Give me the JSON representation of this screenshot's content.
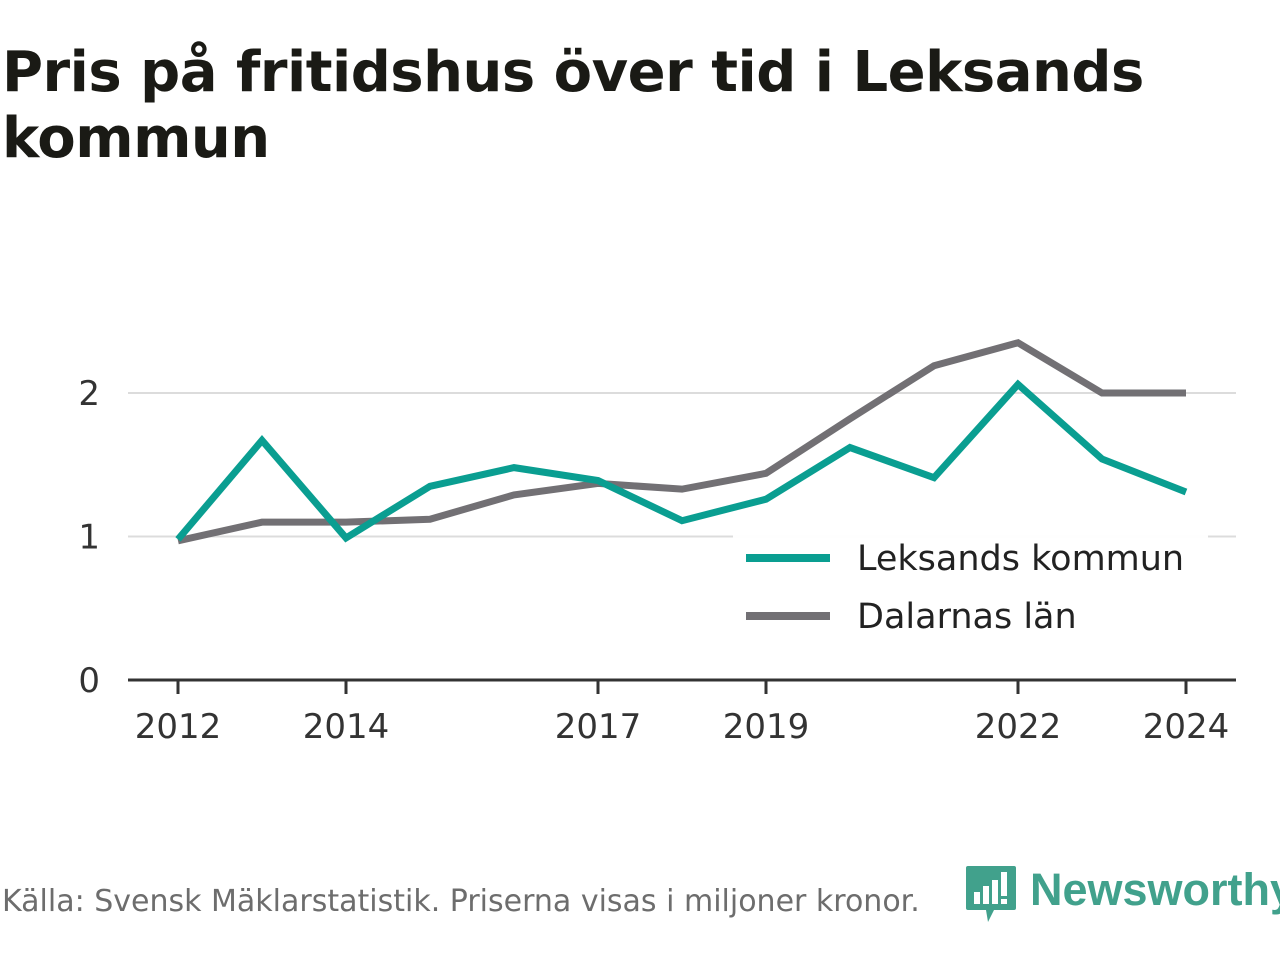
{
  "header": {
    "title": "Pris på fritidshus över tid i Leksands kommun"
  },
  "footer": {
    "source": "Källa: Svensk Mäklarstatistik. Priserna visas i miljoner kronor."
  },
  "brand": {
    "name": "Newsworthy",
    "icon": "newsworthy-logo-icon",
    "color": "#41a18c"
  },
  "chart_data": {
    "type": "line",
    "title": "Pris på fritidshus över tid i Leksands kommun",
    "xlabel": "",
    "ylabel": "",
    "x": [
      2012,
      2013,
      2014,
      2015,
      2016,
      2017,
      2018,
      2019,
      2020,
      2021,
      2022,
      2023,
      2024
    ],
    "x_ticks": [
      "2012",
      "2014",
      "2017",
      "2019",
      "2022",
      "2024"
    ],
    "y_ticks": [
      "0",
      "1",
      "2"
    ],
    "ylim": [
      0,
      2.6
    ],
    "grid": true,
    "legend_position": "bottom-right",
    "series": [
      {
        "name": "Leksands kommun",
        "color": "#0a9e91",
        "values": [
          0.98,
          1.67,
          0.99,
          1.35,
          1.48,
          1.39,
          1.11,
          1.26,
          1.62,
          1.41,
          2.06,
          1.54,
          1.31
        ]
      },
      {
        "name": "Dalarnas län",
        "color": "#727074",
        "values": [
          0.97,
          1.1,
          1.1,
          1.12,
          1.29,
          1.37,
          1.33,
          1.44,
          1.82,
          2.19,
          2.35,
          2.0,
          2.0
        ]
      }
    ]
  }
}
